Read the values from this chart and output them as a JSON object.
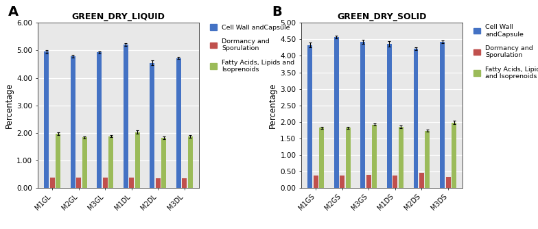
{
  "chart_A": {
    "title": "GREEN_DRY_LIQUID",
    "categories": [
      "M1GL",
      "M2GL",
      "M3GL",
      "M1DL",
      "M2DL",
      "M3DL"
    ],
    "cell_wall": [
      4.95,
      4.78,
      4.93,
      5.22,
      4.55,
      4.72
    ],
    "cell_wall_err": [
      0.07,
      0.05,
      0.04,
      0.05,
      0.08,
      0.04
    ],
    "dormancy": [
      0.38,
      0.37,
      0.36,
      0.37,
      0.35,
      0.34
    ],
    "dormancy_err": [
      0.02,
      0.02,
      0.02,
      0.02,
      0.02,
      0.02
    ],
    "fatty_acids": [
      1.97,
      1.84,
      1.88,
      2.03,
      1.82,
      1.88
    ],
    "fatty_acids_err": [
      0.04,
      0.04,
      0.03,
      0.06,
      0.04,
      0.05
    ],
    "ylim": [
      0.0,
      6.0
    ],
    "yticks": [
      0.0,
      1.0,
      2.0,
      3.0,
      4.0,
      5.0,
      6.0
    ],
    "ylabel": "Percentage"
  },
  "chart_B": {
    "title": "GREEN_DRY_SOLID",
    "categories": [
      "M1GS",
      "M2GS",
      "M3GS",
      "M1DS",
      "M2DS",
      "M3DS"
    ],
    "cell_wall": [
      4.33,
      4.57,
      4.43,
      4.37,
      4.22,
      4.42
    ],
    "cell_wall_err": [
      0.07,
      0.05,
      0.06,
      0.08,
      0.04,
      0.04
    ],
    "dormancy": [
      0.38,
      0.37,
      0.4,
      0.38,
      0.46,
      0.34
    ],
    "dormancy_err": [
      0.02,
      0.02,
      0.02,
      0.02,
      0.02,
      0.02
    ],
    "fatty_acids": [
      1.82,
      1.82,
      1.92,
      1.85,
      1.73,
      1.98
    ],
    "fatty_acids_err": [
      0.03,
      0.03,
      0.04,
      0.04,
      0.03,
      0.05
    ],
    "ylim": [
      0.0,
      5.0
    ],
    "yticks": [
      0.0,
      0.5,
      1.0,
      1.5,
      2.0,
      2.5,
      3.0,
      3.5,
      4.0,
      4.5,
      5.0
    ],
    "ylabel": "Percentage"
  },
  "color_cell_wall": "#4472C4",
  "color_dormancy": "#C0504D",
  "color_fatty": "#9BBB59",
  "legend_labels_A": [
    "Cell Wall andCapsule",
    "Dormancy and\nSporulation",
    "Fatty Acids, Lipids and\nIsoprenoids"
  ],
  "legend_labels_B": [
    "Cell Wall\nandCapsule",
    "Dormancy and\nSporulation",
    "Fatty Acids, Lipids\nand Isoprenoids"
  ],
  "background_color": "#e8e8e8",
  "bar_width": 0.18,
  "bar_offsets": [
    -0.22,
    0.0,
    0.22
  ]
}
